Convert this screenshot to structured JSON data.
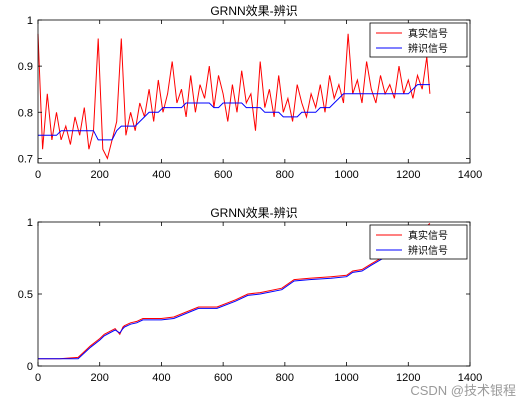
{
  "chart_data": [
    {
      "type": "line",
      "title": "GRNN效果-辨识",
      "xlim": [
        0,
        1400
      ],
      "ylim": [
        0.69,
        1.0
      ],
      "xticks": [
        0,
        200,
        400,
        600,
        800,
        1000,
        1200,
        1400
      ],
      "yticks": [
        0.7,
        0.8,
        0.9,
        1
      ],
      "ytick_labels": [
        "0.7",
        "0.8",
        "0.9",
        "1"
      ],
      "legend": "top-right",
      "series": [
        {
          "name": "真实信号",
          "color": "#ff0000",
          "x": [
            0,
            15,
            30,
            45,
            60,
            75,
            90,
            105,
            120,
            135,
            150,
            165,
            180,
            195,
            210,
            225,
            240,
            255,
            270,
            285,
            300,
            315,
            330,
            345,
            360,
            375,
            390,
            405,
            420,
            435,
            450,
            465,
            480,
            495,
            510,
            525,
            540,
            555,
            570,
            585,
            600,
            615,
            630,
            645,
            660,
            675,
            690,
            705,
            720,
            735,
            750,
            765,
            780,
            795,
            810,
            825,
            840,
            855,
            870,
            885,
            900,
            915,
            930,
            945,
            960,
            975,
            990,
            1005,
            1020,
            1035,
            1050,
            1065,
            1080,
            1095,
            1110,
            1125,
            1140,
            1155,
            1170,
            1185,
            1200,
            1215,
            1230,
            1245,
            1260,
            1270
          ],
          "values": [
            0.97,
            0.72,
            0.84,
            0.74,
            0.8,
            0.74,
            0.77,
            0.73,
            0.79,
            0.75,
            0.81,
            0.72,
            0.76,
            0.96,
            0.72,
            0.7,
            0.74,
            0.78,
            0.96,
            0.75,
            0.8,
            0.76,
            0.82,
            0.79,
            0.85,
            0.78,
            0.87,
            0.8,
            0.84,
            0.91,
            0.82,
            0.85,
            0.79,
            0.88,
            0.8,
            0.86,
            0.83,
            0.9,
            0.81,
            0.88,
            0.84,
            0.78,
            0.86,
            0.8,
            0.89,
            0.82,
            0.84,
            0.76,
            0.91,
            0.81,
            0.85,
            0.79,
            0.88,
            0.8,
            0.83,
            0.78,
            0.86,
            0.82,
            0.79,
            0.84,
            0.81,
            0.86,
            0.8,
            0.88,
            0.83,
            0.86,
            0.82,
            0.97,
            0.84,
            0.87,
            0.82,
            0.91,
            0.85,
            0.82,
            0.88,
            0.84,
            0.86,
            0.83,
            0.9,
            0.84,
            0.87,
            0.83,
            0.88,
            0.85,
            0.92,
            0.84
          ]
        },
        {
          "name": "辨识信号",
          "color": "#0000ff",
          "x": [
            0,
            15,
            30,
            45,
            60,
            75,
            90,
            105,
            120,
            135,
            150,
            165,
            180,
            195,
            210,
            225,
            240,
            255,
            270,
            285,
            300,
            315,
            330,
            345,
            360,
            375,
            390,
            405,
            420,
            435,
            450,
            465,
            480,
            495,
            510,
            525,
            540,
            555,
            570,
            585,
            600,
            615,
            630,
            645,
            660,
            675,
            690,
            705,
            720,
            735,
            750,
            765,
            780,
            795,
            810,
            825,
            840,
            855,
            870,
            885,
            900,
            915,
            930,
            945,
            960,
            975,
            990,
            1005,
            1020,
            1035,
            1050,
            1065,
            1080,
            1095,
            1110,
            1125,
            1140,
            1155,
            1170,
            1185,
            1200,
            1215,
            1230,
            1245,
            1260,
            1270
          ],
          "values": [
            0.75,
            0.75,
            0.75,
            0.75,
            0.75,
            0.76,
            0.76,
            0.76,
            0.76,
            0.76,
            0.76,
            0.76,
            0.76,
            0.74,
            0.74,
            0.74,
            0.74,
            0.76,
            0.77,
            0.77,
            0.77,
            0.77,
            0.78,
            0.79,
            0.8,
            0.8,
            0.8,
            0.81,
            0.81,
            0.81,
            0.81,
            0.81,
            0.82,
            0.82,
            0.82,
            0.82,
            0.82,
            0.82,
            0.81,
            0.81,
            0.82,
            0.82,
            0.82,
            0.82,
            0.82,
            0.81,
            0.81,
            0.81,
            0.81,
            0.8,
            0.8,
            0.8,
            0.8,
            0.79,
            0.79,
            0.79,
            0.79,
            0.8,
            0.8,
            0.8,
            0.8,
            0.81,
            0.81,
            0.81,
            0.82,
            0.83,
            0.84,
            0.84,
            0.84,
            0.84,
            0.84,
            0.84,
            0.84,
            0.84,
            0.84,
            0.84,
            0.84,
            0.84,
            0.84,
            0.84,
            0.84,
            0.85,
            0.86,
            0.86,
            0.86,
            0.86
          ]
        }
      ]
    },
    {
      "type": "line",
      "title": "GRNN效果-辨识",
      "xlim": [
        0,
        1400
      ],
      "ylim": [
        0,
        1
      ],
      "xticks": [
        0,
        200,
        400,
        600,
        800,
        1000,
        1200,
        1400
      ],
      "yticks": [
        0,
        0.5,
        1
      ],
      "ytick_labels": [
        "0",
        "0.5",
        "1"
      ],
      "legend": "top-right",
      "series": [
        {
          "name": "真实信号",
          "color": "#ff0000",
          "x": [
            0,
            70,
            130,
            150,
            170,
            200,
            215,
            250,
            265,
            275,
            280,
            300,
            320,
            340,
            400,
            440,
            520,
            580,
            640,
            680,
            720,
            790,
            830,
            880,
            950,
            1000,
            1020,
            1050,
            1080,
            1120,
            1150,
            1200,
            1230,
            1260,
            1270
          ],
          "values": [
            0.05,
            0.05,
            0.06,
            0.1,
            0.14,
            0.19,
            0.22,
            0.26,
            0.22,
            0.27,
            0.28,
            0.3,
            0.31,
            0.33,
            0.33,
            0.34,
            0.41,
            0.41,
            0.46,
            0.5,
            0.51,
            0.54,
            0.6,
            0.61,
            0.62,
            0.63,
            0.66,
            0.67,
            0.71,
            0.76,
            0.83,
            0.88,
            0.94,
            0.97,
            0.99
          ]
        },
        {
          "name": "辨识信号",
          "color": "#0000ff",
          "x": [
            0,
            70,
            130,
            150,
            170,
            200,
            215,
            250,
            265,
            275,
            280,
            300,
            320,
            340,
            400,
            440,
            520,
            580,
            640,
            680,
            720,
            790,
            830,
            880,
            950,
            1000,
            1020,
            1050,
            1080,
            1120,
            1150,
            1200,
            1230,
            1260,
            1270
          ],
          "values": [
            0.05,
            0.05,
            0.05,
            0.09,
            0.13,
            0.18,
            0.21,
            0.25,
            0.23,
            0.26,
            0.27,
            0.29,
            0.3,
            0.32,
            0.32,
            0.33,
            0.4,
            0.4,
            0.45,
            0.49,
            0.5,
            0.53,
            0.59,
            0.6,
            0.61,
            0.62,
            0.65,
            0.66,
            0.7,
            0.75,
            0.82,
            0.87,
            0.93,
            0.96,
            0.98
          ]
        }
      ]
    }
  ],
  "watermark": "CSDN @技术银程"
}
